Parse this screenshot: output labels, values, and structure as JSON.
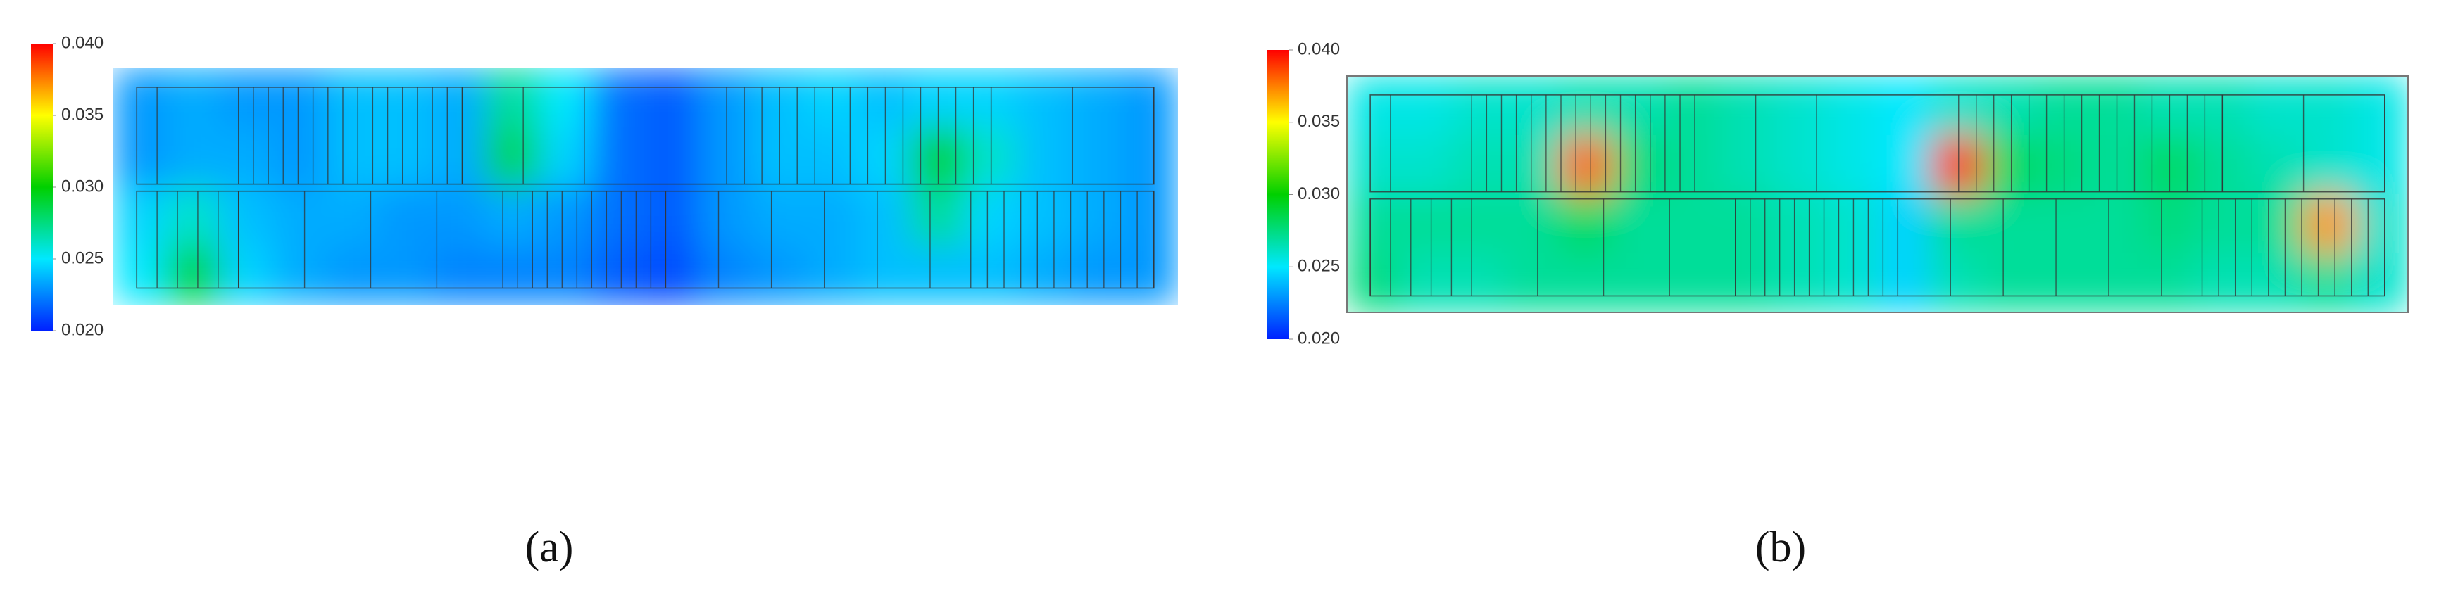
{
  "chart_data": [
    {
      "type": "heatmap",
      "caption": "(a)",
      "zlim": [
        0.02,
        0.04
      ],
      "zticks": [
        {
          "value": 0.02,
          "label": "0.020"
        },
        {
          "value": 0.025,
          "label": "0.025"
        },
        {
          "value": 0.03,
          "label": "0.030"
        },
        {
          "value": 0.035,
          "label": "0.035"
        },
        {
          "value": 0.04,
          "label": "0.040"
        }
      ],
      "z": [
        [
          0.023,
          0.0235,
          0.023,
          0.023,
          0.024,
          0.024,
          0.0235,
          0.027,
          0.025,
          0.022,
          0.0215,
          0.023,
          0.024,
          0.0245,
          0.024,
          0.0245,
          0.0245,
          0.024,
          0.0235,
          0.023
        ],
        [
          0.023,
          0.0235,
          0.0235,
          0.023,
          0.024,
          0.024,
          0.0235,
          0.0285,
          0.0245,
          0.022,
          0.0215,
          0.023,
          0.024,
          0.024,
          0.0245,
          0.0295,
          0.026,
          0.024,
          0.0235,
          0.023
        ],
        [
          0.0245,
          0.026,
          0.024,
          0.0235,
          0.0235,
          0.023,
          0.023,
          0.0235,
          0.023,
          0.022,
          0.0215,
          0.023,
          0.0235,
          0.0235,
          0.024,
          0.027,
          0.0245,
          0.024,
          0.0235,
          0.023
        ],
        [
          0.025,
          0.029,
          0.0245,
          0.0235,
          0.023,
          0.023,
          0.0225,
          0.0225,
          0.0225,
          0.0215,
          0.021,
          0.0225,
          0.023,
          0.0235,
          0.024,
          0.024,
          0.024,
          0.0235,
          0.023,
          0.023
        ]
      ]
    },
    {
      "type": "heatmap",
      "caption": "(b)",
      "zlim": [
        0.02,
        0.04
      ],
      "zticks": [
        {
          "value": 0.02,
          "label": "0.020"
        },
        {
          "value": 0.025,
          "label": "0.025"
        },
        {
          "value": 0.03,
          "label": "0.030"
        },
        {
          "value": 0.035,
          "label": "0.035"
        },
        {
          "value": 0.04,
          "label": "0.040"
        }
      ],
      "z": [
        [
          0.0255,
          0.0255,
          0.026,
          0.026,
          0.0265,
          0.0265,
          0.027,
          0.0265,
          0.026,
          0.0255,
          0.025,
          0.026,
          0.0265,
          0.027,
          0.027,
          0.0265,
          0.0265,
          0.026,
          0.026,
          0.0255
        ],
        [
          0.026,
          0.026,
          0.0265,
          0.0265,
          0.038,
          0.0275,
          0.027,
          0.0265,
          0.026,
          0.0255,
          0.025,
          0.039,
          0.028,
          0.0275,
          0.027,
          0.028,
          0.027,
          0.0265,
          0.026,
          0.0255
        ],
        [
          0.027,
          0.027,
          0.027,
          0.027,
          0.028,
          0.027,
          0.027,
          0.027,
          0.0265,
          0.026,
          0.0245,
          0.027,
          0.027,
          0.027,
          0.027,
          0.0275,
          0.027,
          0.027,
          0.037,
          0.026
        ],
        [
          0.0275,
          0.0265,
          0.0265,
          0.027,
          0.027,
          0.027,
          0.027,
          0.027,
          0.0265,
          0.026,
          0.0245,
          0.0265,
          0.027,
          0.027,
          0.027,
          0.027,
          0.0265,
          0.0265,
          0.027,
          0.026
        ]
      ]
    }
  ]
}
